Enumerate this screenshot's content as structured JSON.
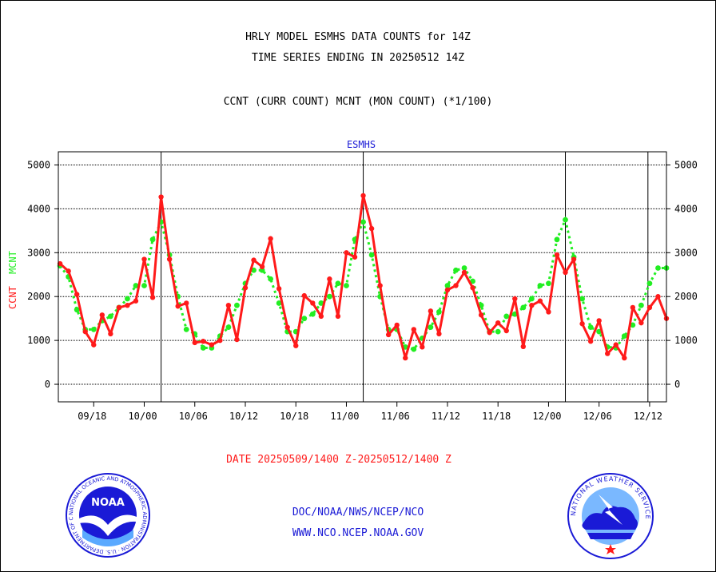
{
  "header": {
    "line1": "HRLY MODEL ESMHS DATA COUNTS for 14Z",
    "line2": "TIME SERIES ENDING IN 20250512 14Z",
    "line3": "CCNT (CURR COUNT) MCNT (MON COUNT) (*1/100)"
  },
  "chart_data": {
    "type": "line",
    "title": "ESMHS",
    "ylabel_left_parts": [
      "CCNT",
      "MCNT"
    ],
    "ylim": [
      -400,
      5300
    ],
    "y_ticks": [
      "0",
      "1000",
      "2000",
      "3000",
      "4000",
      "5000"
    ],
    "x_ticks": [
      "09/18",
      "10/00",
      "10/06",
      "10/12",
      "10/18",
      "11/00",
      "11/06",
      "11/12",
      "11/18",
      "12/00",
      "12/06",
      "12/12"
    ],
    "x_tick_hours": [
      4,
      10,
      16,
      22,
      28,
      34,
      40,
      46,
      52,
      58,
      64,
      70
    ],
    "x_range_hours": [
      -0.2,
      72
    ],
    "day_boundaries_hours": [
      12,
      36,
      60,
      69.8
    ],
    "grid": true,
    "series": [
      {
        "name": "CCNT",
        "color": "#ff1a1a",
        "x": [
          0,
          1,
          2,
          3,
          4,
          5,
          6,
          7,
          8,
          9,
          10,
          11,
          12,
          13,
          14,
          15,
          16,
          17,
          18,
          19,
          20,
          21,
          22,
          23,
          24,
          25,
          26,
          27,
          28,
          29,
          30,
          31,
          32,
          33,
          34,
          35,
          36,
          37,
          38,
          39,
          40,
          41,
          42,
          43,
          44,
          45,
          46,
          47,
          48,
          49,
          50,
          51,
          52,
          53,
          54,
          55,
          56,
          57,
          58,
          59,
          60,
          61,
          62,
          63,
          64,
          65,
          66,
          67,
          68,
          69,
          70,
          71,
          72
        ],
        "values": [
          2750,
          2580,
          2050,
          1200,
          900,
          1580,
          1150,
          1750,
          1800,
          1900,
          2850,
          1980,
          4270,
          2850,
          1780,
          1850,
          950,
          980,
          900,
          1000,
          1800,
          1020,
          2200,
          2830,
          2680,
          3320,
          2180,
          1300,
          880,
          2020,
          1850,
          1550,
          2400,
          1550,
          3000,
          2900,
          4300,
          3550,
          2250,
          1130,
          1350,
          600,
          1250,
          850,
          1670,
          1150,
          2150,
          2250,
          2550,
          2200,
          1580,
          1180,
          1400,
          1220,
          1950,
          860,
          1800,
          1900,
          1650,
          2950,
          2550,
          2850,
          1380,
          980,
          1450,
          700,
          900,
          600,
          1750,
          1400,
          1750,
          2000,
          1500
        ]
      },
      {
        "name": "MCNT",
        "color": "#22ee22",
        "x": [
          0,
          1,
          2,
          3,
          4,
          5,
          6,
          7,
          8,
          9,
          10,
          11,
          12,
          13,
          14,
          15,
          16,
          17,
          18,
          19,
          20,
          21,
          22,
          23,
          24,
          25,
          26,
          27,
          28,
          29,
          30,
          31,
          32,
          33,
          34,
          35,
          36,
          37,
          38,
          39,
          40,
          41,
          42,
          43,
          44,
          45,
          46,
          47,
          48,
          49,
          50,
          51,
          52,
          53,
          54,
          55,
          56,
          57,
          58,
          59,
          60,
          61,
          62,
          63,
          64,
          65,
          66,
          67,
          68,
          69,
          70,
          71,
          72
        ],
        "values": [
          2700,
          2450,
          1700,
          1250,
          1250,
          1450,
          1550,
          1750,
          1950,
          2250,
          2250,
          3300,
          3700,
          2950,
          2000,
          1250,
          1150,
          830,
          830,
          1100,
          1300,
          1800,
          2300,
          2600,
          2600,
          2400,
          1850,
          1200,
          1200,
          1500,
          1600,
          1850,
          2000,
          2300,
          2250,
          3300,
          3700,
          2950,
          2000,
          1250,
          1250,
          850,
          800,
          1050,
          1300,
          1650,
          2250,
          2600,
          2650,
          2350,
          1800,
          1200,
          1200,
          1550,
          1600,
          1750,
          1950,
          2250,
          2300,
          3300,
          3750,
          2900,
          1950,
          1300,
          1200,
          850,
          830,
          1100,
          1350,
          1800,
          2300,
          2650,
          2650
        ]
      }
    ],
    "xlabel": "DATE 20250509/1400 Z-20250512/1400 Z"
  },
  "footer": {
    "line1": "DOC/NOAA/NWS/NCEP/NCO",
    "line2": "WWW.NCO.NCEP.NOAA.GOV"
  },
  "logos": {
    "noaa_center": "NOAA",
    "noaa_ring": "NATIONAL OCEANIC AND ATMOSPHERIC ADMINISTRATION · U.S. DEPARTMENT OF COMMERCE ·",
    "nws_ring": "NATIONAL WEATHER SERVICE"
  },
  "colors": {
    "ccnt": "#ff1a1a",
    "mcnt": "#22ee22",
    "footer": "#1a1ad6",
    "panel_title": "#1a1ad6"
  }
}
